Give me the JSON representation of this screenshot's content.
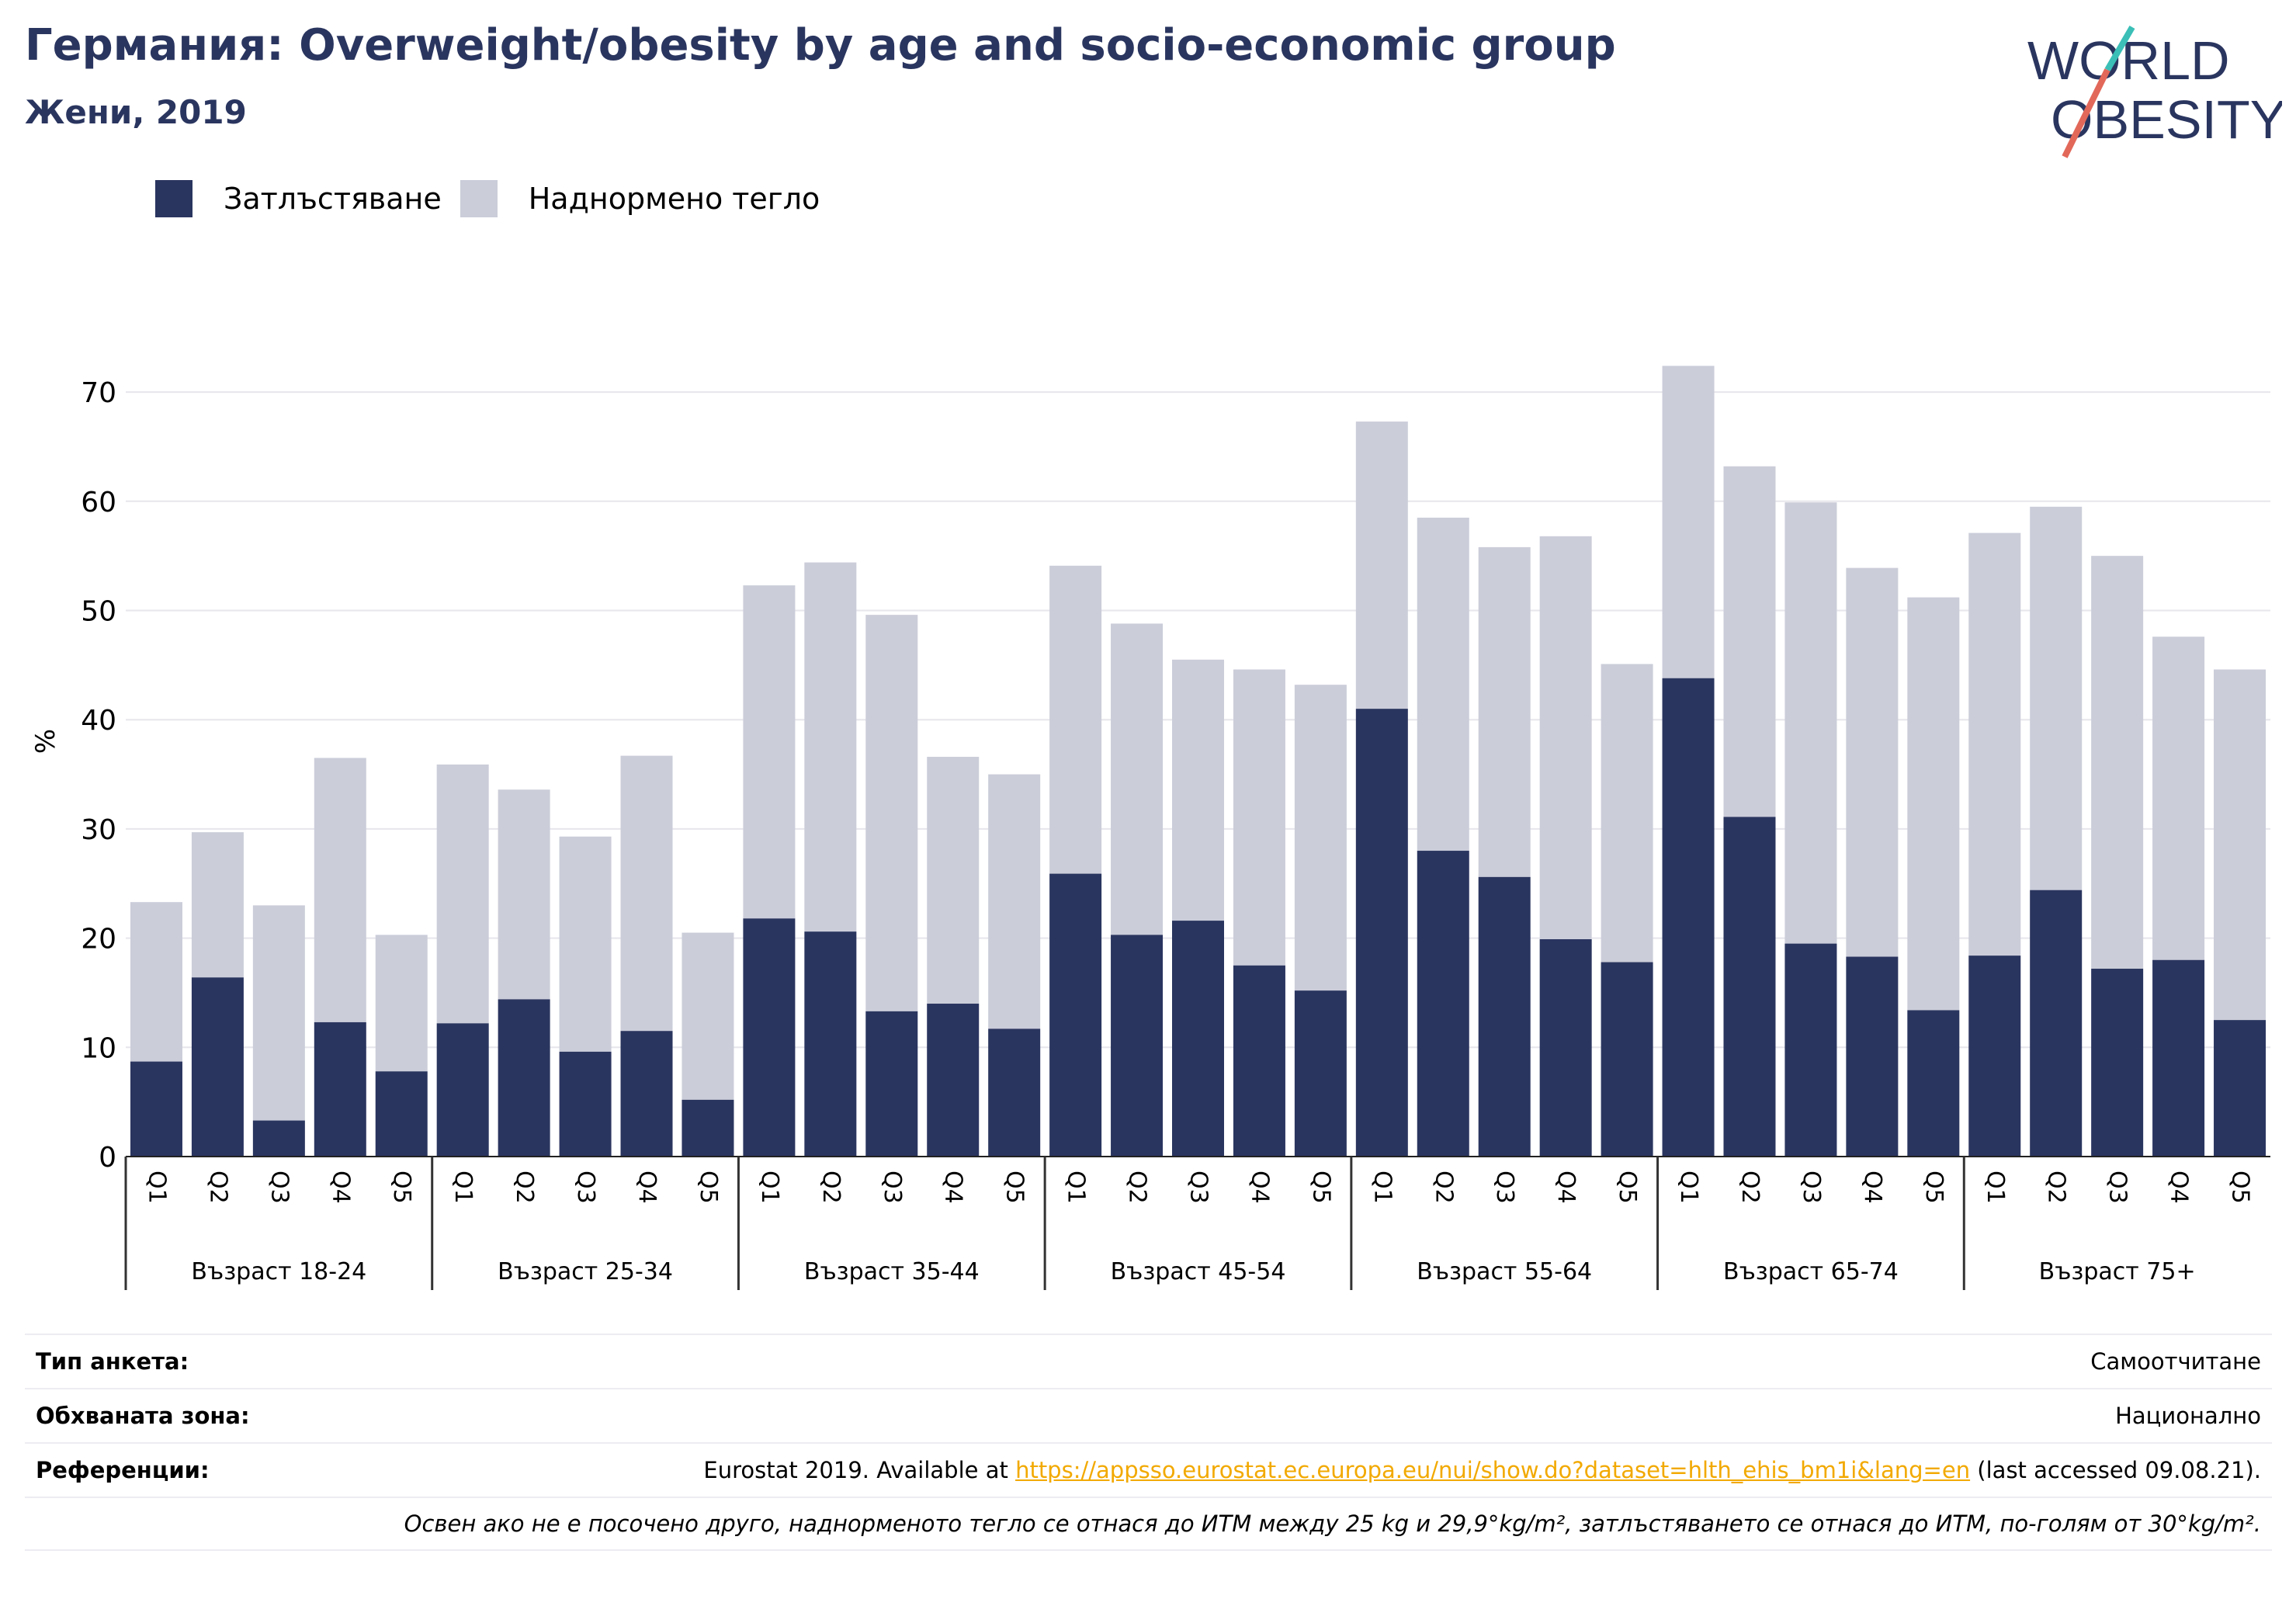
{
  "header": {
    "title": "Германия: Overweight/obesity by age and socio-economic group",
    "subtitle": "Жени, 2019"
  },
  "logo": {
    "line1": "WORLD",
    "line2": "OBESITY"
  },
  "colors": {
    "obesity": "#2a355f",
    "overweight": "#cbcdd9",
    "accent_teal": "#3bbfb7",
    "accent_coral": "#e2685a",
    "link": "#f2a900"
  },
  "chart_data": {
    "type": "bar",
    "stacked": true,
    "ylabel": "%",
    "ylim": [
      0,
      75
    ],
    "yticks": [
      0,
      10,
      20,
      30,
      40,
      50,
      60,
      70
    ],
    "grid": true,
    "legend_position": "top-left",
    "group_labels": [
      "Възраст 18-24",
      "Възраст 25-34",
      "Възраст 35-44",
      "Възраст 45-54",
      "Възраст 55-64",
      "Възраст 65-74",
      "Възраст 75+"
    ],
    "quintiles": [
      "Q1",
      "Q2",
      "Q3",
      "Q4",
      "Q5"
    ],
    "series": [
      {
        "name": "Затлъстяване",
        "values": [
          8.7,
          16.4,
          3.3,
          12.3,
          7.8,
          12.2,
          14.4,
          9.6,
          11.5,
          5.2,
          21.8,
          20.6,
          13.3,
          14.0,
          11.7,
          25.9,
          20.3,
          21.6,
          17.5,
          15.2,
          41.0,
          28.0,
          25.6,
          19.9,
          17.8,
          43.8,
          31.1,
          19.5,
          18.3,
          13.4,
          18.4,
          24.4,
          17.2,
          18.0,
          12.5
        ]
      },
      {
        "name": "Наднормено тегло",
        "values": [
          14.6,
          13.3,
          19.7,
          24.2,
          12.5,
          23.7,
          19.2,
          19.7,
          25.2,
          15.3,
          30.5,
          33.8,
          36.3,
          22.6,
          23.3,
          28.2,
          28.5,
          23.9,
          27.1,
          28.0,
          26.3,
          30.5,
          30.2,
          36.9,
          27.3,
          28.6,
          32.1,
          40.4,
          35.6,
          37.8,
          38.7,
          35.1,
          37.8,
          29.6,
          32.1
        ]
      }
    ]
  },
  "footer": {
    "survey_label": "Тип анкета:",
    "survey_value": "Самоотчитане",
    "area_label": "Обхваната зона:",
    "area_value": "Национално",
    "refs_label": "Референции:",
    "refs_prefix": "Eurostat 2019. Available at ",
    "refs_link": "https://appsso.eurostat.ec.europa.eu/nui/show.do?dataset=hlth_ehis_bm1i&lang=en",
    "refs_suffix": " (last accessed 09.08.21).",
    "note": "Освен ако не е посочено друго, наднорменото тегло се отнася до ИТМ между 25 kg и 29,9°kg/m², затлъстяването се отнася до ИТМ, по-голям от 30°kg/m²."
  }
}
